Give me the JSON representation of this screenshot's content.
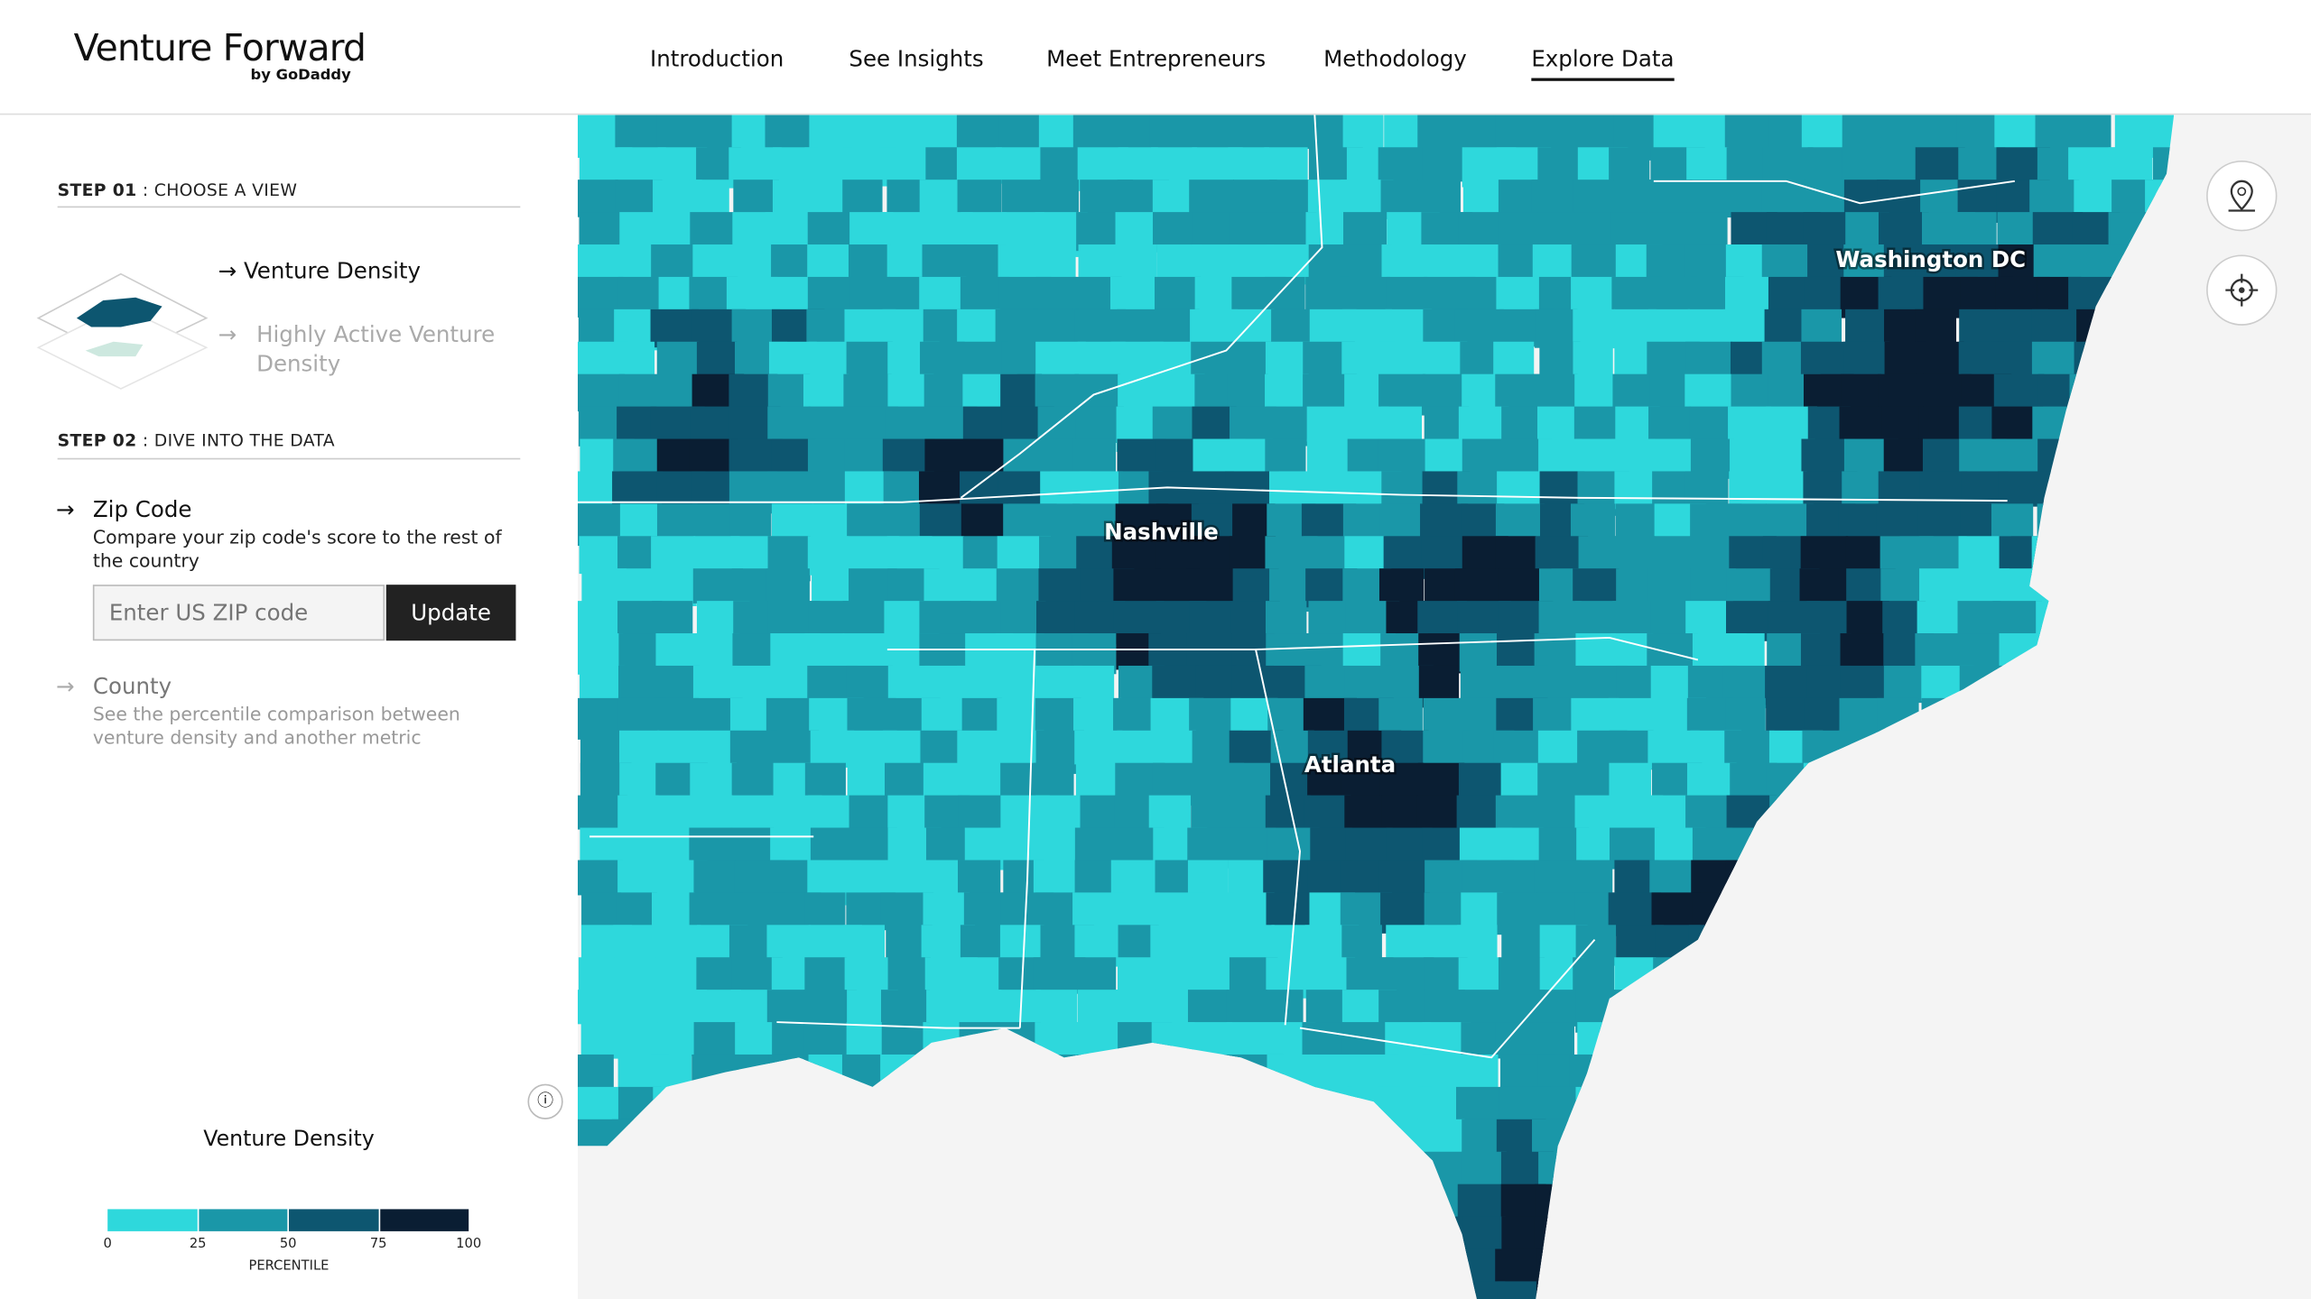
{
  "header": {
    "logo": "Venture Forward",
    "logo_sub": "by GoDaddy",
    "nav": [
      "Introduction",
      "See Insights",
      "Meet Entrepreneurs",
      "Methodology",
      "Explore Data"
    ]
  },
  "sidebar": {
    "step1": {
      "label": "STEP 01",
      "title": ": CHOOSE A VIEW",
      "options": [
        "Venture Density",
        "Highly Active Venture Density"
      ]
    },
    "step2": {
      "label": "STEP 02",
      "title": ": DIVE INTO THE DATA",
      "zip": {
        "title": "Zip Code",
        "description": "Compare your zip code's score to the rest of the country",
        "placeholder": "Enter US ZIP code",
        "button": "Update"
      },
      "county": {
        "title": "County",
        "description": "See the percentile comparison between venture density and another metric"
      }
    }
  },
  "legend": {
    "title": "Venture Density",
    "ticks": [
      0,
      25,
      50,
      75,
      100
    ],
    "colors": [
      "#2ed8dc",
      "#1a97a8",
      "#0d5670",
      "#0a1e33"
    ],
    "axis_label": "PERCENTILE"
  },
  "map": {
    "labels": [
      "Nashville",
      "Atlanta",
      "Washington DC"
    ]
  }
}
